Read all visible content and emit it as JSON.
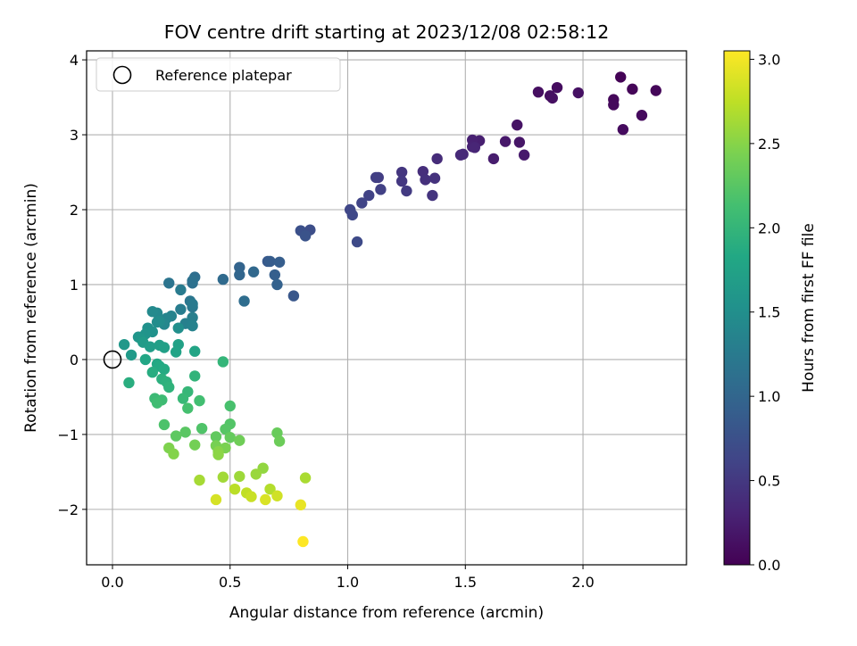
{
  "chart_data": {
    "type": "scatter",
    "title": "FOV centre drift starting at 2023/12/08 02:58:12",
    "xlabel": "Angular distance from reference (arcmin)",
    "ylabel": "Rotation from reference (arcmin)",
    "xlim": [
      -0.11,
      2.44
    ],
    "ylim": [
      -2.74,
      4.12
    ],
    "x_ticks": [
      0.0,
      0.5,
      1.0,
      1.5,
      2.0
    ],
    "x_tick_labels": [
      "0.0",
      "0.5",
      "1.0",
      "1.5",
      "2.0"
    ],
    "y_ticks": [
      -2,
      -1,
      0,
      1,
      2,
      3,
      4
    ],
    "y_tick_labels": [
      "−2",
      "−1",
      "0",
      "1",
      "2",
      "3",
      "4"
    ],
    "grid": true,
    "legend": {
      "placement": "top-left",
      "entries": [
        {
          "label": "Reference platepar",
          "marker": "open-circle"
        }
      ]
    },
    "reference_point": {
      "x": 0.0,
      "y": 0.0
    },
    "colorbar": {
      "label": "Hours from first FF file",
      "colormap": "viridis",
      "range": [
        0.0,
        3.05
      ],
      "ticks": [
        0.0,
        0.5,
        1.0,
        1.5,
        2.0,
        2.5,
        3.0
      ],
      "tick_labels": [
        "0.0",
        "0.5",
        "1.0",
        "1.5",
        "2.0",
        "2.5",
        "3.0"
      ]
    },
    "series": [
      {
        "columns": [
          "x",
          "y",
          "hours"
        ],
        "points": [
          [
            2.16,
            3.77,
            0.02
          ],
          [
            2.21,
            3.61,
            0.04
          ],
          [
            2.31,
            3.59,
            0.05
          ],
          [
            2.13,
            3.47,
            0.06
          ],
          [
            2.13,
            3.4,
            0.07
          ],
          [
            2.25,
            3.26,
            0.08
          ],
          [
            2.17,
            3.07,
            0.09
          ],
          [
            1.89,
            3.63,
            0.1
          ],
          [
            1.86,
            3.52,
            0.11
          ],
          [
            1.81,
            3.57,
            0.12
          ],
          [
            1.87,
            3.49,
            0.13
          ],
          [
            1.98,
            3.56,
            0.14
          ],
          [
            1.72,
            3.13,
            0.16
          ],
          [
            1.73,
            2.9,
            0.18
          ],
          [
            1.67,
            2.91,
            0.2
          ],
          [
            1.75,
            2.73,
            0.22
          ],
          [
            1.62,
            2.68,
            0.24
          ],
          [
            1.56,
            2.92,
            0.26
          ],
          [
            1.53,
            2.93,
            0.28
          ],
          [
            1.53,
            2.84,
            0.3
          ],
          [
            1.54,
            2.83,
            0.32
          ],
          [
            1.49,
            2.74,
            0.34
          ],
          [
            1.48,
            2.73,
            0.36
          ],
          [
            1.38,
            2.68,
            0.38
          ],
          [
            1.32,
            2.51,
            0.4
          ],
          [
            1.33,
            2.4,
            0.42
          ],
          [
            1.37,
            2.42,
            0.44
          ],
          [
            1.36,
            2.19,
            0.46
          ],
          [
            1.23,
            2.5,
            0.48
          ],
          [
            1.23,
            2.38,
            0.5
          ],
          [
            1.25,
            2.25,
            0.52
          ],
          [
            1.13,
            2.43,
            0.54
          ],
          [
            1.12,
            2.43,
            0.56
          ],
          [
            1.14,
            2.27,
            0.58
          ],
          [
            1.09,
            2.19,
            0.6
          ],
          [
            1.06,
            2.09,
            0.62
          ],
          [
            1.01,
            2.0,
            0.64
          ],
          [
            1.02,
            1.93,
            0.66
          ],
          [
            1.04,
            1.57,
            0.68
          ],
          [
            0.84,
            1.73,
            0.72
          ],
          [
            0.8,
            1.72,
            0.75
          ],
          [
            0.82,
            1.65,
            0.78
          ],
          [
            0.77,
            0.85,
            0.82
          ],
          [
            0.66,
            1.31,
            0.85
          ],
          [
            0.67,
            1.31,
            0.88
          ],
          [
            0.71,
            1.3,
            0.9
          ],
          [
            0.69,
            1.13,
            0.92
          ],
          [
            0.7,
            1.0,
            0.95
          ],
          [
            0.54,
            1.23,
            0.98
          ],
          [
            0.54,
            1.13,
            1.0
          ],
          [
            0.6,
            1.17,
            1.02
          ],
          [
            0.47,
            1.07,
            1.05
          ],
          [
            0.56,
            0.78,
            1.08
          ],
          [
            0.35,
            1.1,
            1.1
          ],
          [
            0.34,
            1.02,
            1.12
          ],
          [
            0.34,
            1.05,
            1.14
          ],
          [
            0.24,
            1.02,
            1.17
          ],
          [
            0.33,
            0.78,
            1.2
          ],
          [
            0.34,
            0.7,
            1.22
          ],
          [
            0.34,
            0.74,
            1.24
          ],
          [
            0.29,
            0.93,
            1.26
          ],
          [
            0.29,
            0.67,
            1.28
          ],
          [
            0.34,
            0.56,
            1.3
          ],
          [
            0.31,
            0.48,
            1.32
          ],
          [
            0.34,
            0.45,
            1.34
          ],
          [
            0.25,
            0.58,
            1.36
          ],
          [
            0.23,
            0.55,
            1.38
          ],
          [
            0.22,
            0.47,
            1.4
          ],
          [
            0.19,
            0.62,
            1.42
          ],
          [
            0.17,
            0.64,
            1.44
          ],
          [
            0.2,
            0.51,
            1.46
          ],
          [
            0.19,
            0.5,
            1.48
          ],
          [
            0.28,
            0.42,
            1.5
          ],
          [
            0.15,
            0.42,
            1.52
          ],
          [
            0.17,
            0.37,
            1.54
          ],
          [
            0.14,
            0.34,
            1.56
          ],
          [
            0.11,
            0.3,
            1.58
          ],
          [
            0.12,
            0.28,
            1.6
          ],
          [
            0.05,
            0.2,
            1.62
          ],
          [
            0.08,
            0.06,
            1.64
          ],
          [
            0.13,
            0.23,
            1.66
          ],
          [
            0.16,
            0.17,
            1.68
          ],
          [
            0.2,
            0.19,
            1.7
          ],
          [
            0.22,
            0.16,
            1.72
          ],
          [
            0.28,
            0.2,
            1.74
          ],
          [
            0.27,
            0.1,
            1.76
          ],
          [
            0.35,
            0.11,
            1.78
          ],
          [
            0.14,
            0.0,
            1.8
          ],
          [
            0.19,
            -0.06,
            1.82
          ],
          [
            0.2,
            -0.09,
            1.84
          ],
          [
            0.22,
            -0.13,
            1.86
          ],
          [
            0.17,
            -0.17,
            1.88
          ],
          [
            0.07,
            -0.31,
            1.9
          ],
          [
            0.21,
            -0.26,
            1.92
          ],
          [
            0.23,
            -0.3,
            1.94
          ],
          [
            0.24,
            -0.37,
            1.96
          ],
          [
            0.35,
            -0.22,
            1.98
          ],
          [
            0.47,
            -0.03,
            2.0
          ],
          [
            0.32,
            -0.43,
            2.02
          ],
          [
            0.3,
            -0.52,
            2.04
          ],
          [
            0.18,
            -0.52,
            2.06
          ],
          [
            0.21,
            -0.54,
            2.08
          ],
          [
            0.19,
            -0.58,
            2.1
          ],
          [
            0.37,
            -0.55,
            2.12
          ],
          [
            0.32,
            -0.65,
            2.14
          ],
          [
            0.5,
            -0.62,
            2.16
          ],
          [
            0.22,
            -0.87,
            2.18
          ],
          [
            0.38,
            -0.92,
            2.2
          ],
          [
            0.5,
            -0.86,
            2.22
          ],
          [
            0.48,
            -0.93,
            2.24
          ],
          [
            0.31,
            -0.97,
            2.26
          ],
          [
            0.27,
            -1.02,
            2.28
          ],
          [
            0.44,
            -1.03,
            2.3
          ],
          [
            0.5,
            -1.04,
            2.32
          ],
          [
            0.7,
            -0.98,
            2.34
          ],
          [
            0.71,
            -1.09,
            2.36
          ],
          [
            0.54,
            -1.08,
            2.38
          ],
          [
            0.35,
            -1.14,
            2.4
          ],
          [
            0.44,
            -1.15,
            2.42
          ],
          [
            0.48,
            -1.18,
            2.44
          ],
          [
            0.24,
            -1.18,
            2.46
          ],
          [
            0.26,
            -1.26,
            2.48
          ],
          [
            0.45,
            -1.23,
            2.5
          ],
          [
            0.45,
            -1.27,
            2.52
          ],
          [
            0.64,
            -1.45,
            2.55
          ],
          [
            0.61,
            -1.53,
            2.58
          ],
          [
            0.54,
            -1.56,
            2.6
          ],
          [
            0.47,
            -1.57,
            2.62
          ],
          [
            0.37,
            -1.61,
            2.64
          ],
          [
            0.82,
            -1.58,
            2.66
          ],
          [
            0.67,
            -1.73,
            2.7
          ],
          [
            0.52,
            -1.73,
            2.73
          ],
          [
            0.57,
            -1.78,
            2.76
          ],
          [
            0.59,
            -1.83,
            2.8
          ],
          [
            0.7,
            -1.82,
            2.83
          ],
          [
            0.44,
            -1.87,
            2.86
          ],
          [
            0.65,
            -1.87,
            2.88
          ],
          [
            0.8,
            -1.94,
            2.95
          ],
          [
            0.81,
            -2.43,
            3.05
          ]
        ]
      }
    ]
  }
}
